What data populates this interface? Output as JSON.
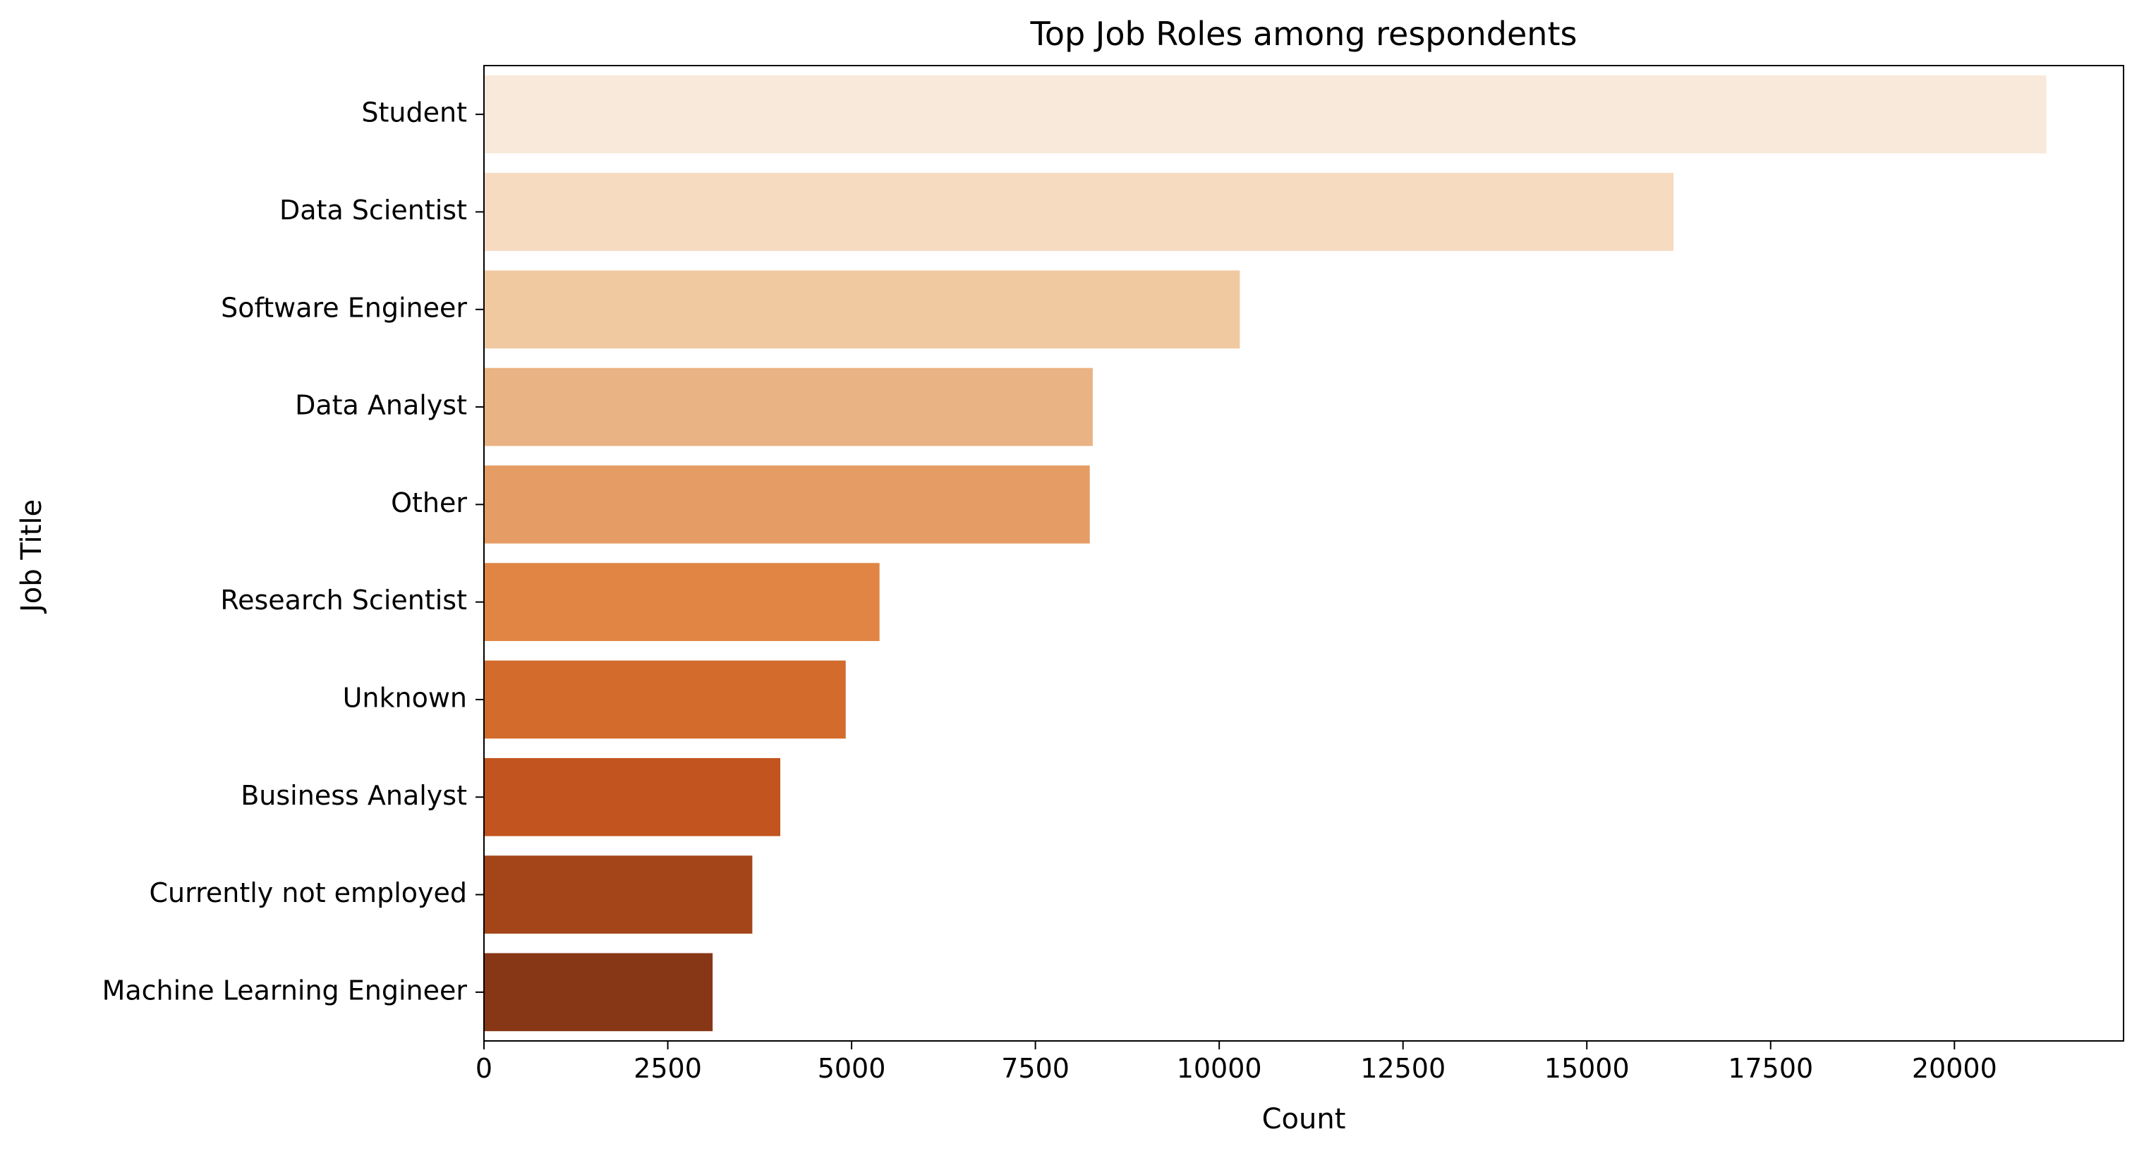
{
  "chart_data": {
    "type": "bar",
    "orientation": "horizontal",
    "title": "Top Job Roles among respondents",
    "xlabel": "Count",
    "ylabel": "Job Title",
    "xlim": [
      0,
      22300
    ],
    "xticks": [
      0,
      2500,
      5000,
      7500,
      10000,
      12500,
      15000,
      17500,
      20000
    ],
    "grid": false,
    "categories": [
      "Student",
      "Data Scientist",
      "Software Engineer",
      "Data Analyst",
      "Other",
      "Research Scientist",
      "Unknown",
      "Business Analyst",
      "Currently not employed",
      "Machine Learning Engineer"
    ],
    "values": [
      21250,
      16180,
      10280,
      8280,
      8240,
      5380,
      4920,
      4030,
      3650,
      3110
    ],
    "colors": [
      "#f9e9da",
      "#f6dbc1",
      "#f1c9a1",
      "#eab383",
      "#e69d65",
      "#e08544",
      "#d26b2c",
      "#c2541f",
      "#a34519",
      "#873716"
    ]
  }
}
